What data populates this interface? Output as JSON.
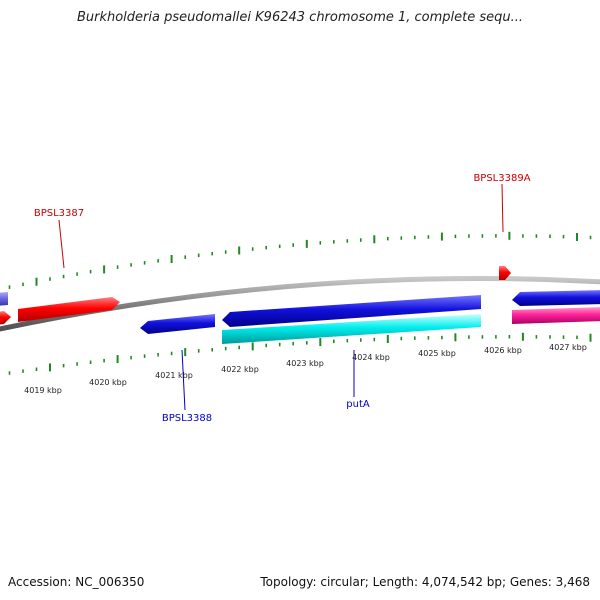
{
  "title": "Burkholderia pseudomallei K96243 chromosome 1, complete sequ...",
  "footer": {
    "accession": "Accession: NC_006350",
    "info": "Topology: circular; Length: 4,074,542 bp; Genes: 3,468"
  },
  "kbp_labels": [
    "4019 kbp",
    "4020 kbp",
    "4021 kbp",
    "4022 kbp",
    "4023 kbp",
    "4024 kbp",
    "4025 kbp",
    "4026 kbp",
    "4027 kbp"
  ],
  "gene_labels": [
    {
      "text": "BPSL3387",
      "strand": "forward"
    },
    {
      "text": "BPSL3389A",
      "strand": "forward"
    },
    {
      "text": "BPSL3388",
      "strand": "reverse"
    },
    {
      "text": "putA",
      "strand": "reverse"
    }
  ],
  "colors": {
    "backbone": "#888888",
    "tick": "#228822",
    "forward_gene": "#ff0000",
    "reverse_gene": "#0000dd",
    "cyan_feature": "#00e5e5",
    "magenta_feature": "#ff22aa",
    "purple_feature": "#7777dd",
    "forward_label": "#cc0000",
    "reverse_label": "#0000cc"
  }
}
